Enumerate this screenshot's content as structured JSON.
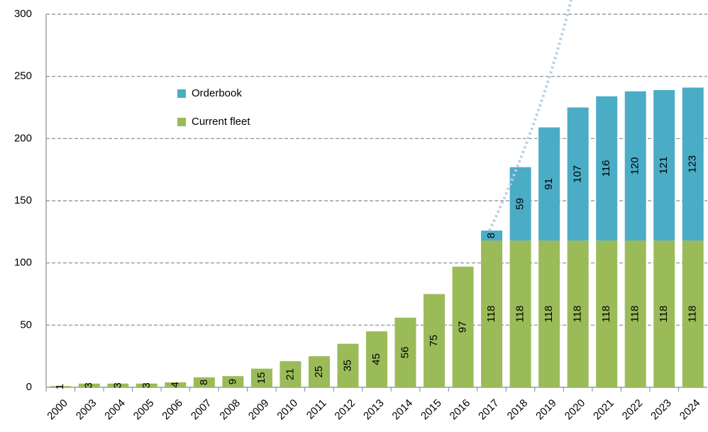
{
  "chart_data": {
    "type": "stacked_bar",
    "categories": [
      "2000",
      "2003",
      "2004",
      "2005",
      "2006",
      "2007",
      "2008",
      "2009",
      "2010",
      "2011",
      "2012",
      "2013",
      "2014",
      "2015",
      "2016",
      "2017",
      "2018",
      "2019",
      "2020",
      "2021",
      "2022",
      "2023",
      "2024"
    ],
    "series": [
      {
        "name": "Current fleet",
        "color": "#9bbb59",
        "values": [
          1,
          3,
          3,
          3,
          4,
          8,
          9,
          15,
          21,
          25,
          35,
          45,
          56,
          75,
          97,
          118,
          118,
          118,
          118,
          118,
          118,
          118,
          118
        ]
      },
      {
        "name": "Orderbook",
        "color": "#4bacc6",
        "values": [
          null,
          null,
          null,
          null,
          null,
          null,
          null,
          null,
          null,
          null,
          null,
          null,
          null,
          null,
          null,
          8,
          59,
          91,
          107,
          116,
          120,
          121,
          123
        ]
      }
    ],
    "ylim": [
      0,
      300
    ],
    "yticks": [
      0,
      50,
      100,
      150,
      200,
      250,
      300
    ],
    "grid": true,
    "legend": "upper left"
  }
}
